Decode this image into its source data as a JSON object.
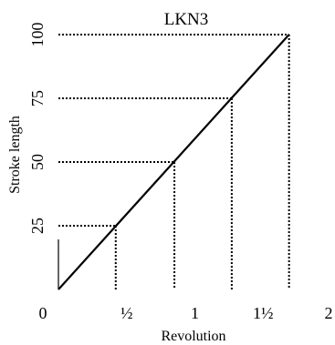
{
  "chart_data": {
    "type": "line",
    "title": "LKN3",
    "xlabel": "Revolution",
    "ylabel": "Stroke length",
    "xlim": [
      0,
      2
    ],
    "ylim": [
      0,
      100
    ],
    "x_ticks": [
      {
        "value": 0,
        "label": "0"
      },
      {
        "value": 0.5,
        "label": "½"
      },
      {
        "value": 1,
        "label": "1"
      },
      {
        "value": 1.5,
        "label": "1½"
      },
      {
        "value": 2,
        "label": "2"
      }
    ],
    "y_ticks": [
      {
        "value": 25,
        "label": "25"
      },
      {
        "value": 50,
        "label": "50"
      },
      {
        "value": 75,
        "label": "75"
      },
      {
        "value": 100,
        "label": "100"
      }
    ],
    "series": [
      {
        "x": [
          0,
          1.69
        ],
        "y": [
          0,
          100
        ]
      }
    ],
    "guides": [
      {
        "x": 0.42,
        "y": 25
      },
      {
        "x": 0.85,
        "y": 50
      },
      {
        "x": 1.27,
        "y": 75
      },
      {
        "x": 1.69,
        "y": 100
      }
    ],
    "grid": false,
    "line_color": "#000000",
    "guide_style": "dotted"
  }
}
